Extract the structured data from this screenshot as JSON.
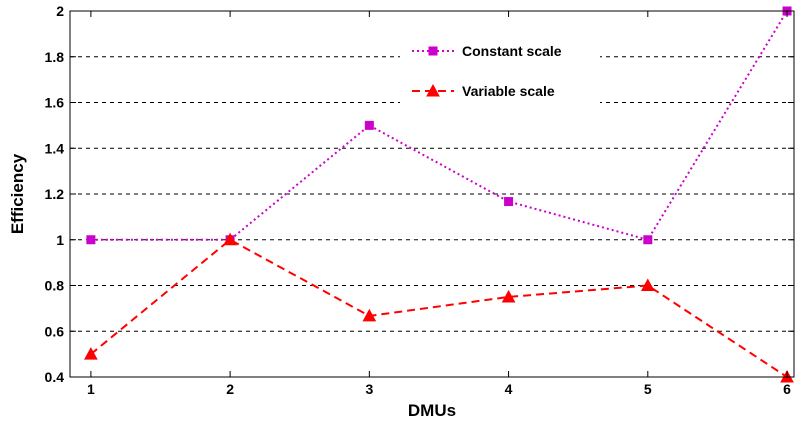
{
  "chart_data": {
    "type": "line",
    "title": "",
    "xlabel": "DMUs",
    "ylabel": "Efficiency",
    "x": [
      1,
      2,
      3,
      4,
      5,
      6
    ],
    "xlim": [
      0.85,
      6.05
    ],
    "ylim": [
      0.4,
      2.0
    ],
    "yticks": [
      0.4,
      0.6,
      0.8,
      1,
      1.2,
      1.4,
      1.6,
      1.8,
      2
    ],
    "ytick_labels": [
      "0.4",
      "0.6",
      "0.8",
      "1",
      "1.2",
      "1.4",
      "1.6",
      "1.8",
      "2"
    ],
    "xtick_labels": [
      "1",
      "2",
      "3",
      "4",
      "5",
      "6"
    ],
    "grid": "horizontal dashed",
    "legend_position": "top-center",
    "series": [
      {
        "name": "Constant scale",
        "values": [
          1.0,
          1.0,
          1.5,
          1.167,
          1.0,
          2.0
        ],
        "color": "#cc00cc",
        "line_style": "dotted",
        "marker": "square"
      },
      {
        "name": "Variable scale",
        "values": [
          0.5,
          1.0,
          0.667,
          0.75,
          0.8,
          0.4
        ],
        "color": "#ff0000",
        "line_style": "dashed",
        "marker": "triangle"
      }
    ]
  }
}
